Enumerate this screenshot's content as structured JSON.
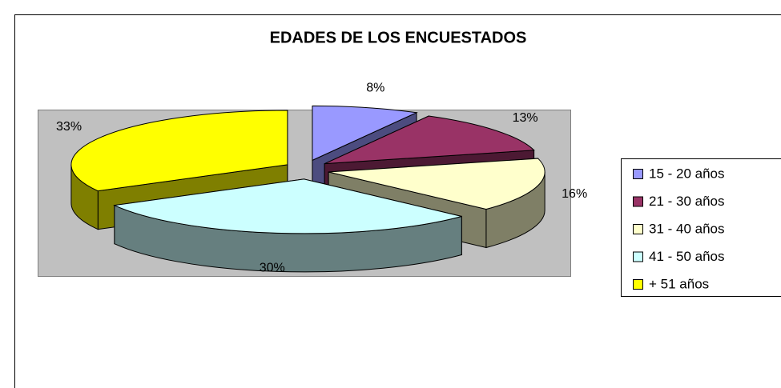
{
  "chart_data": {
    "type": "pie",
    "title": "EDADES DE LOS ENCUESTADOS",
    "categories": [
      "15 - 20 años",
      "21 - 30 años",
      "31 - 40 años",
      "41 - 50 años",
      "+ 51  años"
    ],
    "values": [
      8,
      13,
      16,
      30,
      33
    ],
    "value_labels": [
      "8%",
      "13%",
      "16%",
      "30%",
      "33%"
    ],
    "colors": [
      "#9999FF",
      "#993366",
      "#FFFFCC",
      "#CCFFFF",
      "#FFFF00"
    ],
    "legend": "right"
  }
}
